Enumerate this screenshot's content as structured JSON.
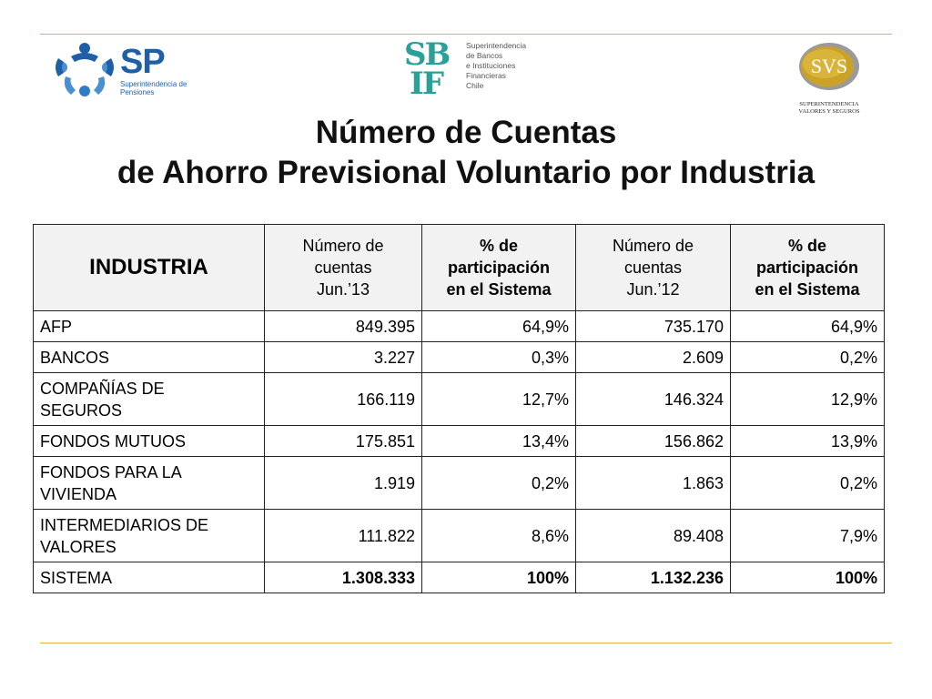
{
  "logos": {
    "sp": {
      "mark": "SP",
      "subtitle": "Superintendencia de Pensiones"
    },
    "sbif": {
      "mark_line1": "SB",
      "mark_line2": "IF",
      "text_lines": [
        "Superintendencia",
        "de Bancos",
        "e Instituciones",
        "Financieras",
        "Chile"
      ]
    },
    "svs": {
      "mark": "SVS",
      "subtitle_line1": "SUPERINTENDENCIA",
      "subtitle_line2": "VALORES Y SEGUROS"
    }
  },
  "title": {
    "line1": "Número de Cuentas",
    "line2": "de Ahorro Previsional Voluntario por Industria"
  },
  "table": {
    "headers": [
      [
        "INDUSTRIA"
      ],
      [
        "Número de",
        "cuentas",
        "Jun.’13"
      ],
      [
        "% de",
        "participación",
        "en el Sistema"
      ],
      [
        "Número de",
        "cuentas",
        "Jun.’12"
      ],
      [
        "% de",
        "participación",
        "en el Sistema"
      ]
    ],
    "rows": [
      {
        "name": [
          "AFP"
        ],
        "cells": [
          "849.395",
          "64,9%",
          "735.170",
          "64,9%"
        ]
      },
      {
        "name": [
          "BANCOS"
        ],
        "cells": [
          "3.227",
          "0,3%",
          "2.609",
          "0,2%"
        ]
      },
      {
        "name": [
          "COMPAÑÍAS DE",
          "SEGUROS"
        ],
        "cells": [
          "166.119",
          "12,7%",
          "146.324",
          "12,9%"
        ]
      },
      {
        "name": [
          "FONDOS MUTUOS"
        ],
        "cells": [
          "175.851",
          "13,4%",
          "156.862",
          "13,9%"
        ]
      },
      {
        "name": [
          "FONDOS PARA LA",
          "VIVIENDA"
        ],
        "cells": [
          "1.919",
          "0,2%",
          "1.863",
          "0,2%"
        ]
      },
      {
        "name": [
          "INTERMEDIARIOS DE",
          "VALORES"
        ],
        "cells": [
          "111.822",
          "8,6%",
          "89.408",
          "7,9%"
        ]
      },
      {
        "name": [
          "SISTEMA"
        ],
        "cells": [
          "1.308.333",
          "100%",
          "1.132.236",
          "100%"
        ]
      }
    ]
  },
  "colors": {
    "accent_rule": "#e8b04a",
    "sp_blue": "#1f5fa8",
    "sbif_teal": "#2aa198",
    "svs_gold": "#c9a227",
    "header_bg": "#f2f2f2"
  }
}
